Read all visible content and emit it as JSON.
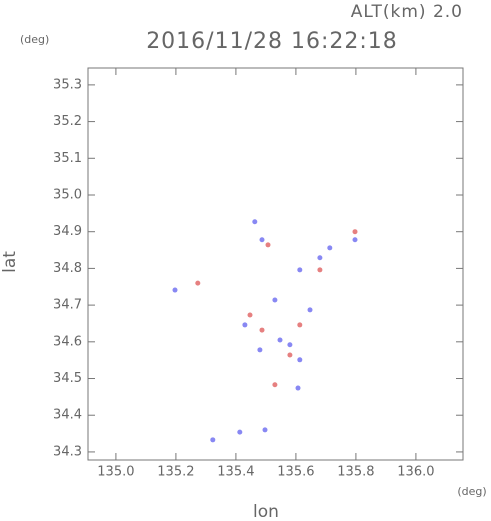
{
  "chart_data": {
    "type": "scatter",
    "title": "2016/11/28 16:22:18",
    "subtitle": "ALT(km) 2.0",
    "y_unit": "(deg)",
    "x_unit": "(deg)",
    "x_label": "lon",
    "y_label": "lat",
    "xlim": [
      134.907,
      136.157
    ],
    "ylim": [
      34.278,
      35.346
    ],
    "xticks": [
      {
        "value": 135.0,
        "label": "135.0"
      },
      135.2,
      135.4,
      135.6,
      135.8,
      {
        "value": 136.0,
        "label": "136.0"
      }
    ],
    "yticks": [
      35.3,
      35.2,
      35.1,
      {
        "value": 35.0,
        "label": "35.0"
      },
      34.9,
      34.8,
      34.7,
      34.6,
      34.5,
      34.4,
      34.3
    ],
    "series": [
      {
        "color": "#6a6af0",
        "x": [
          135.463,
          135.487,
          135.613,
          135.797,
          135.68,
          135.197,
          135.43,
          135.547,
          135.613,
          135.647,
          135.48,
          135.607,
          135.323,
          135.413,
          135.497,
          135.53,
          135.58,
          135.713
        ],
        "values": [
          34.927,
          34.878,
          34.796,
          34.878,
          34.829,
          34.741,
          34.646,
          34.605,
          34.551,
          34.687,
          34.578,
          34.474,
          34.333,
          34.354,
          34.36,
          34.714,
          34.592,
          34.856
        ]
      },
      {
        "color": "#e06060",
        "x": [
          135.273,
          135.797,
          135.53,
          135.447,
          135.613,
          135.507,
          135.58,
          135.68,
          135.487
        ],
        "values": [
          34.76,
          34.9,
          34.483,
          34.673,
          34.646,
          34.864,
          34.564,
          34.796,
          34.632
        ]
      }
    ]
  }
}
